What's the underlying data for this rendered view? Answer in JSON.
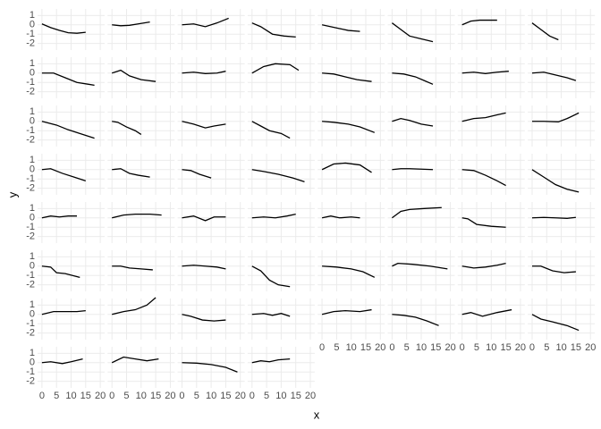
{
  "chart_data": {
    "type": "line",
    "xlabel": "x",
    "ylabel": "y",
    "color": "#000000",
    "xlim": [
      -1.5,
      21.5
    ],
    "ylim": [
      -2.7,
      1.7
    ],
    "xticks": [
      0,
      5,
      10,
      15,
      20
    ],
    "yticks": [
      -2,
      -1,
      0,
      1
    ],
    "grid": true,
    "series": [
      {
        "x": [
          0,
          3,
          6,
          9,
          12,
          15
        ],
        "values": [
          0.1,
          -0.3,
          -0.6,
          -0.85,
          -0.9,
          -0.8
        ]
      },
      {
        "x": [
          0,
          3,
          6,
          9,
          13
        ],
        "values": [
          0,
          -0.1,
          -0.05,
          0.1,
          0.3
        ]
      },
      {
        "x": [
          0,
          4,
          8,
          12,
          16
        ],
        "values": [
          0,
          0.1,
          -0.2,
          0.2,
          0.7
        ]
      },
      {
        "x": [
          0,
          3,
          7,
          11,
          15
        ],
        "values": [
          0.2,
          -0.2,
          -1.0,
          -1.2,
          -1.3
        ]
      },
      {
        "x": [
          0,
          3,
          6,
          9,
          13
        ],
        "values": [
          0,
          -0.2,
          -0.4,
          -0.6,
          -0.7
        ]
      },
      {
        "x": [
          0,
          3,
          6,
          10,
          14
        ],
        "values": [
          0.2,
          -0.5,
          -1.2,
          -1.5,
          -1.8
        ]
      },
      {
        "x": [
          0,
          3,
          6,
          9,
          12
        ],
        "values": [
          0,
          0.4,
          0.5,
          0.5,
          0.5
        ]
      },
      {
        "x": [
          0,
          3,
          6,
          9
        ],
        "values": [
          0.2,
          -0.5,
          -1.2,
          -1.6
        ]
      },
      {
        "x": [
          0,
          4,
          8,
          12,
          16,
          18
        ],
        "values": [
          0,
          0,
          -0.5,
          -1,
          -1.2,
          -1.3
        ]
      },
      {
        "x": [
          0,
          3,
          6,
          10,
          15
        ],
        "values": [
          0,
          0.3,
          -0.3,
          -0.7,
          -0.9
        ]
      },
      {
        "x": [
          0,
          4,
          8,
          12,
          15
        ],
        "values": [
          0,
          0.1,
          -0.05,
          0,
          0.2
        ]
      },
      {
        "x": [
          0,
          4,
          8,
          13,
          16
        ],
        "values": [
          0,
          0.7,
          1.0,
          0.9,
          0.3
        ]
      },
      {
        "x": [
          0,
          4,
          8,
          12,
          17
        ],
        "values": [
          0,
          -0.1,
          -0.4,
          -0.7,
          -0.9
        ]
      },
      {
        "x": [
          0,
          4,
          8,
          11,
          14
        ],
        "values": [
          0,
          -0.1,
          -0.4,
          -0.8,
          -1.2
        ]
      },
      {
        "x": [
          0,
          4,
          8,
          12,
          16
        ],
        "values": [
          0,
          0.1,
          -0.05,
          0.1,
          0.2
        ]
      },
      {
        "x": [
          0,
          4,
          8,
          12,
          15
        ],
        "values": [
          0,
          0.1,
          -0.2,
          -0.5,
          -0.8
        ]
      },
      {
        "x": [
          0,
          5,
          9,
          13,
          18
        ],
        "values": [
          0,
          -0.4,
          -0.9,
          -1.3,
          -1.8
        ]
      },
      {
        "x": [
          0,
          2,
          5,
          8,
          10
        ],
        "values": [
          0,
          -0.1,
          -0.6,
          -1.0,
          -1.4
        ]
      },
      {
        "x": [
          0,
          4,
          8,
          11,
          15
        ],
        "values": [
          0,
          -0.3,
          -0.7,
          -0.5,
          -0.3
        ]
      },
      {
        "x": [
          0,
          3,
          6,
          10,
          13
        ],
        "values": [
          0,
          -0.5,
          -1.0,
          -1.3,
          -1.8
        ]
      },
      {
        "x": [
          0,
          4,
          9,
          13,
          18
        ],
        "values": [
          0,
          -0.1,
          -0.3,
          -0.6,
          -1.2
        ]
      },
      {
        "x": [
          0,
          3,
          6,
          10,
          14
        ],
        "values": [
          0,
          0.3,
          0.1,
          -0.3,
          -0.5
        ]
      },
      {
        "x": [
          0,
          4,
          8,
          12,
          15
        ],
        "values": [
          0,
          0.3,
          0.4,
          0.7,
          0.9
        ]
      },
      {
        "x": [
          0,
          4,
          9,
          12,
          16
        ],
        "values": [
          0,
          0,
          -0.05,
          0.3,
          0.9
        ]
      },
      {
        "x": [
          0,
          3,
          7,
          11,
          15
        ],
        "values": [
          0,
          0.1,
          -0.4,
          -0.8,
          -1.2
        ]
      },
      {
        "x": [
          0,
          3,
          6,
          9,
          13
        ],
        "values": [
          0,
          0.1,
          -0.4,
          -0.6,
          -0.8
        ]
      },
      {
        "x": [
          0,
          3,
          6,
          10
        ],
        "values": [
          0,
          -0.1,
          -0.5,
          -0.9
        ]
      },
      {
        "x": [
          0,
          4,
          9,
          14,
          18
        ],
        "values": [
          0,
          -0.2,
          -0.5,
          -0.9,
          -1.3
        ]
      },
      {
        "x": [
          0,
          4,
          8,
          13,
          17
        ],
        "values": [
          0,
          0.6,
          0.7,
          0.5,
          -0.3
        ]
      },
      {
        "x": [
          0,
          3,
          6,
          10,
          14
        ],
        "values": [
          0,
          0.1,
          0.1,
          0.05,
          0
        ]
      },
      {
        "x": [
          0,
          4,
          8,
          12,
          15
        ],
        "values": [
          0,
          -0.1,
          -0.6,
          -1.2,
          -1.7
        ]
      },
      {
        "x": [
          0,
          4,
          8,
          12,
          16
        ],
        "values": [
          0,
          -0.8,
          -1.6,
          -2.1,
          -2.4
        ]
      },
      {
        "x": [
          0,
          3,
          6,
          9,
          12
        ],
        "values": [
          0,
          0.2,
          0.1,
          0.2,
          0.2
        ]
      },
      {
        "x": [
          0,
          4,
          8,
          13,
          17
        ],
        "values": [
          0,
          0.3,
          0.4,
          0.4,
          0.3
        ]
      },
      {
        "x": [
          0,
          4,
          8,
          11,
          15
        ],
        "values": [
          0,
          0.2,
          -0.3,
          0.1,
          0.1
        ]
      },
      {
        "x": [
          0,
          4,
          8,
          12,
          15
        ],
        "values": [
          0,
          0.1,
          0,
          0.2,
          0.4
        ]
      },
      {
        "x": [
          0,
          3,
          6,
          10,
          13
        ],
        "values": [
          0,
          0.2,
          0,
          0.1,
          0
        ]
      },
      {
        "x": [
          0,
          3,
          6,
          11,
          17
        ],
        "values": [
          0,
          0.7,
          0.9,
          1.0,
          1.1
        ]
      },
      {
        "x": [
          0,
          2,
          5,
          10,
          15
        ],
        "values": [
          0,
          -0.1,
          -0.7,
          -0.9,
          -1.0
        ]
      },
      {
        "x": [
          0,
          4,
          8,
          12,
          15
        ],
        "values": [
          0,
          0.05,
          0,
          -0.05,
          0.05
        ]
      },
      {
        "x": [
          0,
          3,
          5,
          8,
          13
        ],
        "values": [
          0,
          -0.1,
          -0.7,
          -0.8,
          -1.2
        ]
      },
      {
        "x": [
          0,
          3,
          6,
          10,
          14
        ],
        "values": [
          0,
          0,
          -0.2,
          -0.3,
          -0.4
        ]
      },
      {
        "x": [
          0,
          4,
          8,
          12,
          15
        ],
        "values": [
          0,
          0.1,
          0,
          -0.1,
          -0.3
        ]
      },
      {
        "x": [
          0,
          3,
          6,
          9,
          13
        ],
        "values": [
          0,
          -0.5,
          -1.5,
          -2.0,
          -2.2
        ]
      },
      {
        "x": [
          0,
          5,
          10,
          14,
          18
        ],
        "values": [
          0,
          -0.1,
          -0.3,
          -0.6,
          -1.2
        ]
      },
      {
        "x": [
          0,
          2,
          7,
          13,
          19
        ],
        "values": [
          0,
          0.3,
          0.2,
          0,
          -0.3
        ]
      },
      {
        "x": [
          0,
          4,
          8,
          12,
          15
        ],
        "values": [
          0,
          -0.2,
          -0.1,
          0.1,
          0.3
        ]
      },
      {
        "x": [
          0,
          3,
          7,
          11,
          15
        ],
        "values": [
          0,
          0,
          -0.5,
          -0.7,
          -0.6
        ]
      },
      {
        "x": [
          0,
          4,
          8,
          12,
          15
        ],
        "values": [
          0,
          0.3,
          0.3,
          0.3,
          0.4
        ]
      },
      {
        "x": [
          0,
          4,
          8,
          12,
          15
        ],
        "values": [
          0,
          0.3,
          0.5,
          1.0,
          1.8
        ]
      },
      {
        "x": [
          0,
          3,
          7,
          11,
          15
        ],
        "values": [
          0,
          -0.2,
          -0.6,
          -0.7,
          -0.6
        ]
      },
      {
        "x": [
          0,
          4,
          7,
          10,
          13
        ],
        "values": [
          0,
          0.1,
          -0.1,
          0.1,
          -0.2
        ]
      },
      {
        "x": [
          0,
          4,
          8,
          13,
          17
        ],
        "values": [
          0,
          0.3,
          0.4,
          0.3,
          0.5
        ]
      },
      {
        "x": [
          0,
          4,
          8,
          12,
          16
        ],
        "values": [
          0,
          -0.1,
          -0.3,
          -0.7,
          -1.2
        ]
      },
      {
        "x": [
          0,
          3,
          7,
          12,
          17
        ],
        "values": [
          0,
          0.2,
          -0.2,
          0.2,
          0.5
        ]
      },
      {
        "x": [
          0,
          3,
          7,
          12,
          16
        ],
        "values": [
          0,
          -0.5,
          -0.8,
          -1.2,
          -1.7
        ]
      },
      {
        "x": [
          0,
          3,
          7,
          10,
          14
        ],
        "values": [
          0,
          0.1,
          -0.1,
          0.1,
          0.4
        ]
      },
      {
        "x": [
          0,
          4,
          8,
          12,
          16
        ],
        "values": [
          0,
          0.6,
          0.4,
          0.2,
          0.4
        ]
      },
      {
        "x": [
          0,
          5,
          10,
          15,
          19
        ],
        "values": [
          0,
          -0.05,
          -0.2,
          -0.5,
          -1.0
        ]
      },
      {
        "x": [
          0,
          3,
          6,
          9,
          13
        ],
        "values": [
          0,
          0.2,
          0.1,
          0.3,
          0.4
        ]
      }
    ]
  }
}
